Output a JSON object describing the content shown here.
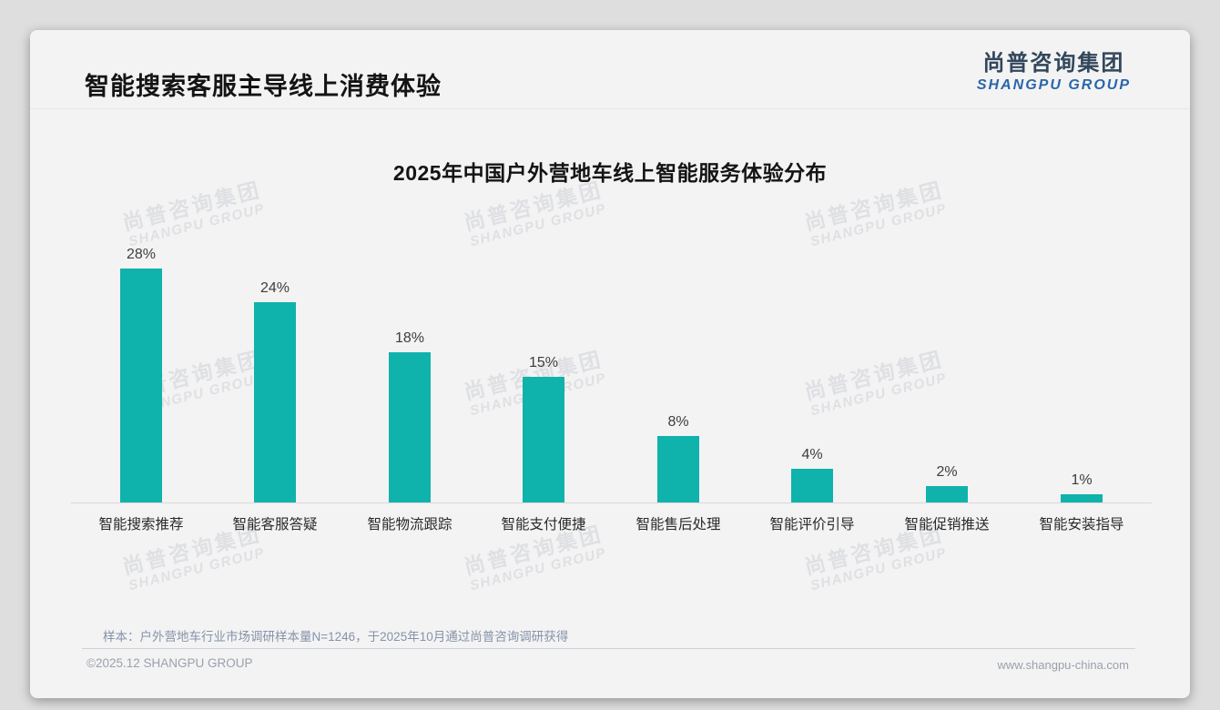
{
  "header": {
    "title": "智能搜索客服主导线上消费体验",
    "logo": {
      "cn": "尚普咨询集团",
      "en": "SHANGPU GROUP"
    }
  },
  "watermark": {
    "cn": "尚普咨询集团",
    "en": "SHANGPU GROUP"
  },
  "chart_data": {
    "type": "bar",
    "title": "2025年中国户外营地车线上智能服务体验分布",
    "categories": [
      "智能搜索推荐",
      "智能客服答疑",
      "智能物流跟踪",
      "智能支付便捷",
      "智能售后处理",
      "智能评价引导",
      "智能促销推送",
      "智能安装指导"
    ],
    "values": [
      28,
      24,
      18,
      15,
      8,
      4,
      2,
      1
    ],
    "data_labels": [
      "28%",
      "24%",
      "18%",
      "15%",
      "8%",
      "4%",
      "2%",
      "1%"
    ],
    "unit": "%",
    "ylim": [
      0,
      30
    ],
    "bar_color": "#10b2ac",
    "grid": false,
    "legend": false
  },
  "footer": {
    "sample_note": "样本：户外营地车行业市场调研样本量N=1246，于2025年10月通过尚普咨询调研获得",
    "copyright": "©2025.12 SHANGPU GROUP",
    "website": "www.shangpu-china.com"
  },
  "colors": {
    "bar": "#10b2ac",
    "logo_cn": "#33475c",
    "logo_en": "#2a66a8",
    "note_text": "#8593a8",
    "footer_text": "#9aa1ab",
    "card_bg": "#f3f3f4"
  }
}
